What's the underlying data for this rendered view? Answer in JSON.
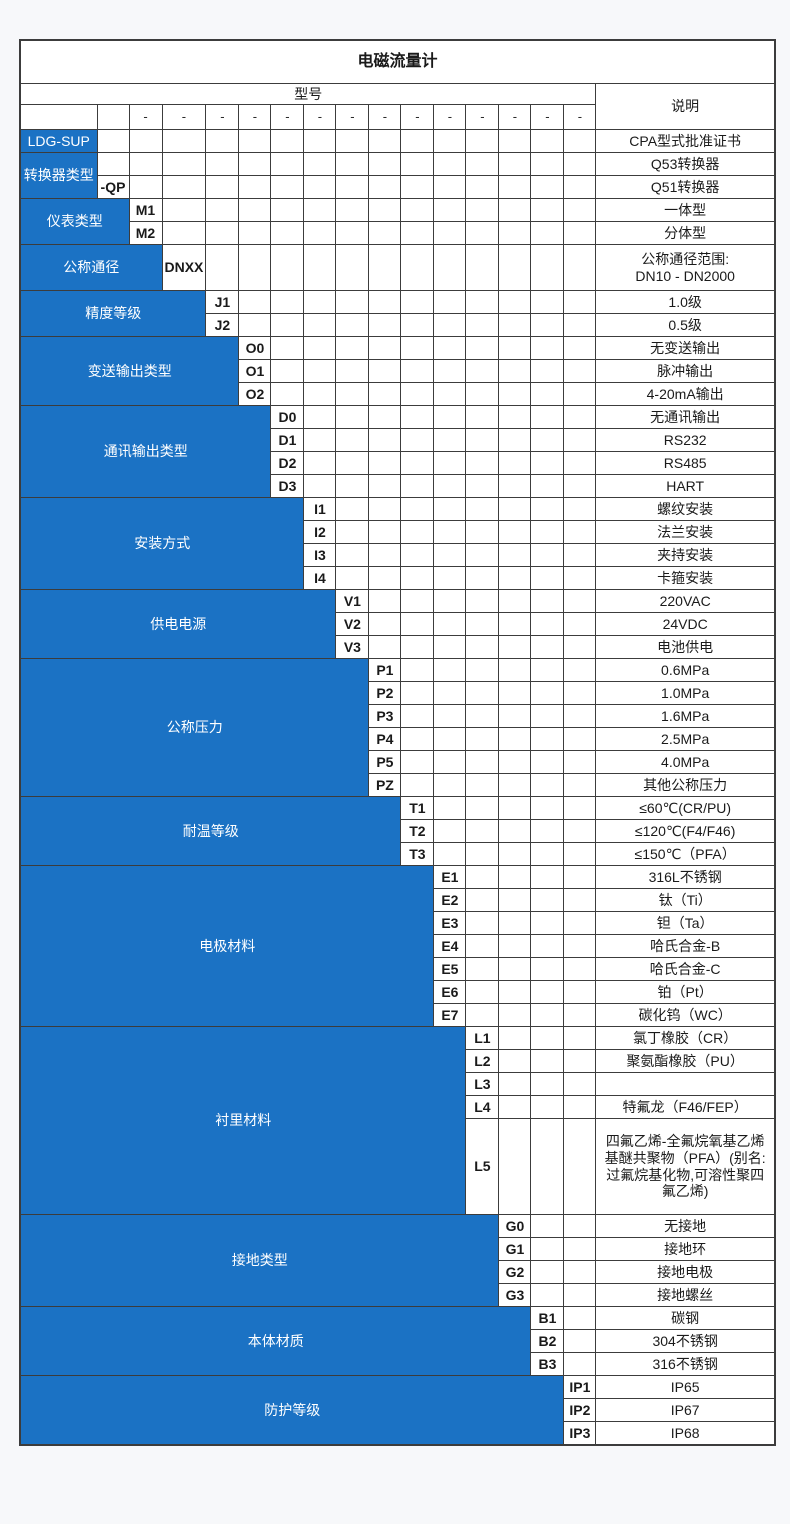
{
  "title": "电磁流量计",
  "header": {
    "model": "型号",
    "description": "说明",
    "separator": "-"
  },
  "colors": {
    "accent_blue": "#1b72c4",
    "grid_border": "#3c3c3c",
    "label_text": "#ffffff",
    "cell_text": "#1a1a1a"
  },
  "groups": [
    {
      "key": "series-code",
      "label": "LDG-SUP",
      "code_in_label": true,
      "span": 1,
      "rows": [
        {
          "code": "LDG-SUP",
          "desc": "CPA型式批准证书"
        }
      ]
    },
    {
      "key": "converter-type",
      "label": "转换器类型",
      "span": 1,
      "rows": [
        {
          "code": "",
          "desc": "Q53转换器"
        },
        {
          "code": "-QP",
          "desc": "Q51转换器"
        }
      ]
    },
    {
      "key": "meter-type",
      "label": "仪表类型",
      "span": 2,
      "rows": [
        {
          "code": "M1",
          "desc": "一体型"
        },
        {
          "code": "M2",
          "desc": "分体型"
        }
      ]
    },
    {
      "key": "nominal-diameter",
      "label": "公称通径",
      "span": 3,
      "rows": [
        {
          "code": "DNXX",
          "desc": "公称通径范围:\nDN10 - DN2000",
          "h": 46
        }
      ]
    },
    {
      "key": "accuracy-class",
      "label": "精度等级",
      "span": 4,
      "rows": [
        {
          "code": "J1",
          "desc": "1.0级"
        },
        {
          "code": "J2",
          "desc": "0.5级"
        }
      ]
    },
    {
      "key": "transmitter-output-type",
      "label": "变送输出类型",
      "span": 5,
      "rows": [
        {
          "code": "O0",
          "desc": "无变送输出"
        },
        {
          "code": "O1",
          "desc": "脉冲输出"
        },
        {
          "code": "O2",
          "desc": "4-20mA输出"
        }
      ]
    },
    {
      "key": "communication-output-type",
      "label": "通讯输出类型",
      "span": 6,
      "rows": [
        {
          "code": "D0",
          "desc": "无通讯输出"
        },
        {
          "code": "D1",
          "desc": "RS232"
        },
        {
          "code": "D2",
          "desc": "RS485"
        },
        {
          "code": "D3",
          "desc": "HART"
        }
      ]
    },
    {
      "key": "installation-type",
      "label": "安装方式",
      "span": 7,
      "rows": [
        {
          "code": "I1",
          "desc": "螺纹安装"
        },
        {
          "code": "I2",
          "desc": "法兰安装"
        },
        {
          "code": "I3",
          "desc": "夹持安装"
        },
        {
          "code": "I4",
          "desc": "卡箍安装"
        }
      ]
    },
    {
      "key": "power-supply",
      "label": "供电电源",
      "span": 8,
      "rows": [
        {
          "code": "V1",
          "desc": "220VAC"
        },
        {
          "code": "V2",
          "desc": "24VDC"
        },
        {
          "code": "V3",
          "desc": "电池供电"
        }
      ]
    },
    {
      "key": "nominal-pressure",
      "label": "公称压力",
      "span": 9,
      "rows": [
        {
          "code": "P1",
          "desc": "0.6MPa"
        },
        {
          "code": "P2",
          "desc": "1.0MPa"
        },
        {
          "code": "P3",
          "desc": "1.6MPa"
        },
        {
          "code": "P4",
          "desc": "2.5MPa"
        },
        {
          "code": "P5",
          "desc": "4.0MPa"
        },
        {
          "code": "PZ",
          "desc": "其他公称压力"
        }
      ]
    },
    {
      "key": "temperature-rating",
      "label": "耐温等级",
      "span": 10,
      "rows": [
        {
          "code": "T1",
          "desc": "≤60℃(CR/PU)"
        },
        {
          "code": "T2",
          "desc": "≤120℃(F4/F46)"
        },
        {
          "code": "T3",
          "desc": "≤150℃（PFA）"
        }
      ]
    },
    {
      "key": "electrode-material",
      "label": "电极材料",
      "span": 11,
      "rows": [
        {
          "code": "E1",
          "desc": "316L不锈钢"
        },
        {
          "code": "E2",
          "desc": "钛（Ti）"
        },
        {
          "code": "E3",
          "desc": "钽（Ta）"
        },
        {
          "code": "E4",
          "desc": "哈氏合金-B"
        },
        {
          "code": "E5",
          "desc": "哈氏合金-C"
        },
        {
          "code": "E6",
          "desc": "铂（Pt）"
        },
        {
          "code": "E7",
          "desc": "碳化钨（WC）"
        }
      ]
    },
    {
      "key": "lining-material",
      "label": "衬里材料",
      "span": 12,
      "rows": [
        {
          "code": "L1",
          "desc": "氯丁橡胶（CR）"
        },
        {
          "code": "L2",
          "desc": "聚氨酯橡胶（PU）"
        },
        {
          "code": "L3",
          "desc": ""
        },
        {
          "code": "L4",
          "desc": "特氟龙（F46/FEP）"
        },
        {
          "code": "L5",
          "desc": "四氟乙烯-全氟烷氧基乙烯基醚共聚物（PFA）(别名:过氟烷基化物,可溶性聚四氟乙烯)",
          "h": 96
        }
      ]
    },
    {
      "key": "grounding-type",
      "label": "接地类型",
      "span": 13,
      "rows": [
        {
          "code": "G0",
          "desc": "无接地"
        },
        {
          "code": "G1",
          "desc": "接地环"
        },
        {
          "code": "G2",
          "desc": "接地电极"
        },
        {
          "code": "G3",
          "desc": "接地螺丝"
        }
      ]
    },
    {
      "key": "body-material",
      "label": "本体材质",
      "span": 14,
      "rows": [
        {
          "code": "B1",
          "desc": "碳钢"
        },
        {
          "code": "B2",
          "desc": "304不锈钢"
        },
        {
          "code": "B3",
          "desc": "316不锈钢"
        }
      ]
    },
    {
      "key": "protection-rating",
      "label": "防护等级",
      "span": 15,
      "rows": [
        {
          "code": "IP1",
          "desc": "IP65"
        },
        {
          "code": "IP2",
          "desc": "IP67"
        },
        {
          "code": "IP3",
          "desc": "IP68"
        }
      ]
    }
  ]
}
